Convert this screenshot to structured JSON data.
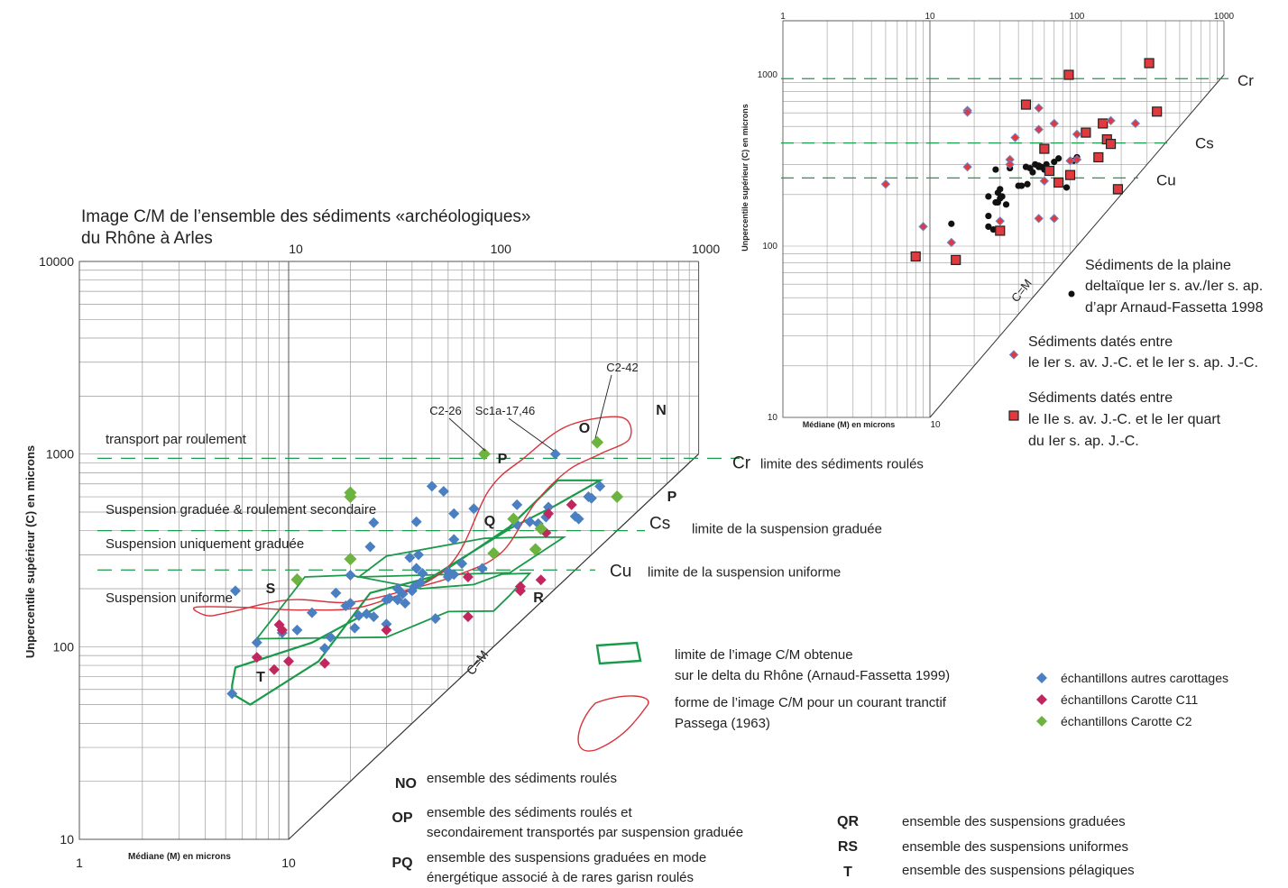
{
  "chart_data": [
    {
      "type": "scatter",
      "title_line1": "Image C/M de l’ensemble des sédiments «archéologiques»",
      "title_line2": "du  Rhône à Arles",
      "xlabel": "Médiane (M) en microns",
      "ylabel": "Unpercentile supérieur (C) en microns",
      "x_scale": "log",
      "y_scale": "log",
      "xlim": [
        1,
        1000
      ],
      "ylim": [
        10,
        10000
      ],
      "x_ticks": [
        "1",
        "10",
        "100",
        "1000"
      ],
      "x_ticks_top": [
        "10",
        "100",
        "1000"
      ],
      "y_ticks": [
        "10",
        "100",
        "1000",
        "10000"
      ],
      "diag_label": "C=M",
      "lines": [
        {
          "key": "Cr",
          "name": "Cr",
          "desc": "limite des sédiments roulés",
          "y": 950
        },
        {
          "key": "Cs",
          "name": "Cs",
          "desc": "limite de la suspension graduée",
          "y": 400
        },
        {
          "key": "Cu",
          "name": "Cu",
          "desc": "limite de la suspension uniforme",
          "y": 250
        }
      ],
      "zones": [
        "transport par roulement",
        "Suspension graduée & roulement secondaire",
        "Suspension uniquement graduée",
        "Suspension uniforme"
      ],
      "letters": [
        "N",
        "O",
        "P",
        "P",
        "Q",
        "R",
        "S",
        "T"
      ],
      "annotations": [
        "C2-26",
        "Sc1a-17,46",
        "C2-42"
      ],
      "passega_red": [
        [
          3.5,
          160
        ],
        [
          6,
          160
        ],
        [
          12,
          155
        ],
        [
          25,
          165
        ],
        [
          60,
          260
        ],
        [
          95,
          650
        ],
        [
          140,
          950
        ],
        [
          230,
          1400
        ],
        [
          420,
          1550
        ],
        [
          460,
          1200
        ],
        [
          330,
          1000
        ],
        [
          230,
          820
        ],
        [
          160,
          560
        ],
        [
          110,
          310
        ],
        [
          70,
          240
        ],
        [
          40,
          200
        ],
        [
          20,
          170
        ],
        [
          10,
          175
        ],
        [
          5,
          150
        ],
        [
          4,
          145
        ]
      ],
      "green_outer": [
        [
          5.3,
          57
        ],
        [
          6.5,
          50
        ],
        [
          14,
          84
        ],
        [
          25,
          190
        ],
        [
          50,
          230
        ],
        [
          120,
          410
        ],
        [
          200,
          540
        ],
        [
          330,
          730
        ],
        [
          205,
          730
        ],
        [
          120,
          420
        ],
        [
          55,
          240
        ],
        [
          13,
          105
        ],
        [
          5.5,
          78
        ],
        [
          5.3,
          63
        ]
      ],
      "green_inner": [
        [
          7,
          110
        ],
        [
          30,
          112
        ],
        [
          60,
          152
        ],
        [
          100,
          153
        ],
        [
          120,
          185
        ],
        [
          150,
          240
        ],
        [
          110,
          238
        ],
        [
          80,
          210
        ],
        [
          44,
          200
        ],
        [
          20,
          235
        ],
        [
          12,
          230
        ],
        [
          7,
          110
        ]
      ],
      "green_mid": [
        [
          22,
          230
        ],
        [
          120,
          242
        ],
        [
          220,
          370
        ],
        [
          150,
          370
        ],
        [
          90,
          365
        ],
        [
          30,
          295
        ],
        [
          22,
          230
        ]
      ],
      "series": [
        {
          "name": "échantillons autres carottages",
          "color": "#4a7fc1",
          "points": [
            [
              5.3,
              57
            ],
            [
              5.5,
              195
            ],
            [
              7,
              105
            ],
            [
              9.3,
              118
            ],
            [
              11,
              122
            ],
            [
              13,
              150
            ],
            [
              15,
              98
            ],
            [
              16,
              112
            ],
            [
              17,
              190
            ],
            [
              19,
              163
            ],
            [
              20,
              168
            ],
            [
              20,
              235
            ],
            [
              21,
              125
            ],
            [
              22,
              145
            ],
            [
              24,
              148
            ],
            [
              26,
              143
            ],
            [
              30,
              131
            ],
            [
              25,
              330
            ],
            [
              26,
              440
            ],
            [
              30,
              175
            ],
            [
              31,
              178
            ],
            [
              34,
              175
            ],
            [
              34,
              200
            ],
            [
              36,
              188
            ],
            [
              37,
              168
            ],
            [
              39,
              290
            ],
            [
              40,
              195
            ],
            [
              41,
              205
            ],
            [
              42,
              445
            ],
            [
              42,
              255
            ],
            [
              43,
              300
            ],
            [
              44,
              215
            ],
            [
              45,
              240
            ],
            [
              50,
              680
            ],
            [
              52,
              140
            ],
            [
              57,
              640
            ],
            [
              60,
              245
            ],
            [
              64,
              490
            ],
            [
              64,
              360
            ],
            [
              64,
              237
            ],
            [
              60,
              230
            ],
            [
              70,
              270
            ],
            [
              80,
              520
            ],
            [
              88,
              255
            ],
            [
              130,
              545
            ],
            [
              130,
              430
            ],
            [
              150,
              445
            ],
            [
              165,
              435
            ],
            [
              180,
              470
            ],
            [
              185,
              530
            ],
            [
              200,
              1000
            ],
            [
              250,
              475
            ],
            [
              260,
              460
            ],
            [
              290,
              600
            ],
            [
              300,
              590
            ],
            [
              330,
              680
            ],
            [
              300,
              590
            ]
          ]
        },
        {
          "name": "échantillons Carotte C11",
          "color": "#c1275e",
          "points": [
            [
              7,
              88
            ],
            [
              8.5,
              76
            ],
            [
              9,
              130
            ],
            [
              9.3,
              122
            ],
            [
              10,
              84
            ],
            [
              15,
              82
            ],
            [
              30,
              122
            ],
            [
              75,
              143
            ],
            [
              75,
              230
            ],
            [
              135,
              195
            ],
            [
              135,
              205
            ],
            [
              170,
              222
            ],
            [
              180,
              390
            ],
            [
              185,
              490
            ],
            [
              240,
              545
            ]
          ]
        },
        {
          "name": "échantillons Carotte C2",
          "color": "#6db33f",
          "points": [
            [
              11,
              223
            ],
            [
              20,
              600
            ],
            [
              20,
              630
            ],
            [
              20,
              285
            ],
            [
              90,
              1000
            ],
            [
              100,
              305
            ],
            [
              125,
              460
            ],
            [
              160,
              320
            ],
            [
              170,
              410
            ],
            [
              320,
              1150
            ],
            [
              400,
              600
            ]
          ]
        }
      ]
    },
    {
      "type": "scatter",
      "xlabel": "Médiane (M) en microns",
      "ylabel": "Unpercentile supérieur (C) en microns",
      "x_scale": "log",
      "y_scale": "log",
      "xlim": [
        1,
        1000
      ],
      "ylim": [
        10,
        1000
      ],
      "x_ticks_top": [
        "1",
        "10",
        "100",
        "1000"
      ],
      "x_ticks_bottom": [
        "10"
      ],
      "y_ticks": [
        "10",
        "100",
        "1000"
      ],
      "diag_label": "C=M",
      "lines": [
        {
          "name": "Cr",
          "y": 950
        },
        {
          "name": "Cs",
          "y": 400
        },
        {
          "name": "Cu",
          "y": 250
        }
      ],
      "series": [
        {
          "name": "Sédiments de la plaine deltaïque Ier s. av./Ier s. ap. d’apr Arnaud-Fassetta 1998",
          "color": "#111111",
          "points": [
            [
              14,
              135
            ],
            [
              25,
              195
            ],
            [
              25,
              130
            ],
            [
              27,
              125
            ],
            [
              28,
              280
            ],
            [
              28,
              180
            ],
            [
              29,
              180
            ],
            [
              29,
              205
            ],
            [
              30,
              190
            ],
            [
              30,
              215
            ],
            [
              31,
              195
            ],
            [
              33,
              175
            ],
            [
              35,
              285
            ],
            [
              40,
              225
            ],
            [
              42,
              225
            ],
            [
              45,
              290
            ],
            [
              46,
              230
            ],
            [
              48,
              285
            ],
            [
              50,
              270
            ],
            [
              52,
              300
            ],
            [
              55,
              295
            ],
            [
              55,
              290
            ],
            [
              57,
              290
            ],
            [
              60,
              280
            ],
            [
              62,
              300
            ],
            [
              65,
              280
            ],
            [
              70,
              310
            ],
            [
              75,
              325
            ],
            [
              85,
              220
            ],
            [
              95,
              315
            ],
            [
              100,
              330
            ],
            [
              25,
              150
            ]
          ]
        },
        {
          "name": "Sédiments datés entre le Ier s. av. J.-C. et le Ier s. ap. J.-C.",
          "color": "#e03a3e",
          "points": [
            [
              5,
              230
            ],
            [
              9,
              130
            ],
            [
              14,
              105
            ],
            [
              18,
              620
            ],
            [
              18,
              605
            ],
            [
              18,
              290
            ],
            [
              30,
              140
            ],
            [
              35,
              320
            ],
            [
              35,
              300
            ],
            [
              38,
              430
            ],
            [
              55,
              640
            ],
            [
              55,
              145
            ],
            [
              55,
              480
            ],
            [
              60,
              240
            ],
            [
              70,
              520
            ],
            [
              70,
              145
            ],
            [
              90,
              315
            ],
            [
              100,
              320
            ],
            [
              100,
              450
            ],
            [
              170,
              540
            ],
            [
              250,
              520
            ]
          ]
        },
        {
          "name": "Sédiments datés entre le IIe s. av. J.-C. et le Ier quart du Ier s. ap.  J.-C.",
          "color": "#e03a3e",
          "points": [
            [
              8,
              87
            ],
            [
              15,
              83
            ],
            [
              30,
              123
            ],
            [
              45,
              670
            ],
            [
              60,
              370
            ],
            [
              65,
              275
            ],
            [
              75,
              235
            ],
            [
              88,
              1000
            ],
            [
              90,
              260
            ],
            [
              115,
              460
            ],
            [
              140,
              330
            ],
            [
              150,
              520
            ],
            [
              160,
              420
            ],
            [
              170,
              395
            ],
            [
              190,
              215
            ],
            [
              310,
              1170
            ],
            [
              350,
              610
            ]
          ]
        }
      ]
    }
  ],
  "legend": {
    "green_zone": [
      "limite de l’image C/M obtenue",
      "sur le delta du Rhône (Arnaud-Fassetta 1999)"
    ],
    "red_zone": [
      "forme de l’image C/M pour un courant tranctif",
      "Passega (1963)"
    ],
    "key": [
      {
        "code": "NO",
        "lines": [
          "ensemble des sédiments roulés"
        ]
      },
      {
        "code": "OP",
        "lines": [
          "ensemble des sédiments roulés et",
          "secondairement transportés par suspension graduée"
        ]
      },
      {
        "code": "PQ",
        "lines": [
          "ensemble des suspensions graduées en mode",
          "énergétique associé à de rares garisn roulés"
        ]
      },
      {
        "code": "QR",
        "lines": [
          "ensemble des suspensions graduées"
        ]
      },
      {
        "code": "RS",
        "lines": [
          "ensemble des suspensions uniformes"
        ]
      },
      {
        "code": "T",
        "lines": [
          "ensemble des suspensions pélagiques"
        ]
      }
    ],
    "accent_red": "#e03a4e",
    "green": "#1a9a4a"
  },
  "right_legend": [
    [
      "Sédiments de la plaine",
      "deltaïque Ier s. av./Ier s. ap.",
      "d’apr Arnaud-Fassetta 1998"
    ],
    [
      "Sédiments datés entre",
      "le Ier s. av. J.-C. et le Ier s. ap. J.-C."
    ],
    [
      "Sédiments datés entre",
      "le IIe s. av. J.-C. et le Ier quart",
      "du Ier s. ap.  J.-C."
    ]
  ]
}
